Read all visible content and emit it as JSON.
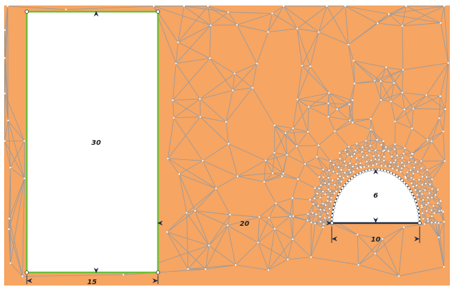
{
  "colors": {
    "mesh_fill": "#F6A562",
    "mesh_edge": "#8f9aa6",
    "node": "#ffffff",
    "boundary_green": "#6BBF3A",
    "boundary_dark": "#1f2a44",
    "arrow": "#1f2a44",
    "hole_fill": "#ffffff"
  },
  "labels": {
    "rect_height": "30",
    "rect_width": "15",
    "gap_width": "20",
    "arch_height": "6",
    "arch_width": "10"
  },
  "icons": {
    "dimension_arrow": "arrowhead-icon"
  }
}
